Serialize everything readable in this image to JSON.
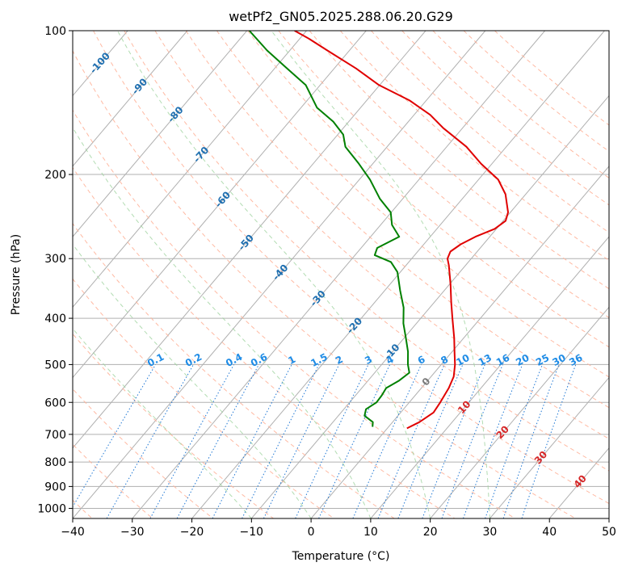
{
  "chart_data": {
    "type": "skew-t",
    "title": "wetPf2_GN05.2025.288.06.20.G29",
    "xlabel": "Temperature (°C)",
    "ylabel": "Pressure (hPa)",
    "xlim": [
      -40,
      50
    ],
    "ylim_hpa": [
      1050,
      100
    ],
    "skew_degC_per_log10p": 67.8,
    "x_ticks": [
      -40,
      -30,
      -20,
      -10,
      0,
      10,
      20,
      30,
      40,
      50
    ],
    "x_tick_labels": [
      "−40",
      "−30",
      "−20",
      "−10",
      "0",
      "10",
      "20",
      "30",
      "40",
      "50"
    ],
    "p_ticks": [
      1000,
      900,
      800,
      700,
      600,
      500,
      400,
      300,
      200,
      100
    ],
    "isotherms": [
      -140,
      -130,
      -120,
      -110,
      -100,
      -90,
      -80,
      -70,
      -60,
      -50,
      -40,
      -30,
      -20,
      -10,
      0,
      10,
      20,
      30,
      40,
      50
    ],
    "dry_adiabats_C": [
      -70,
      -60,
      -50,
      -40,
      -30,
      -20,
      -10,
      0,
      10,
      20,
      30,
      40,
      50,
      60,
      70,
      80,
      90,
      100,
      110,
      120,
      130,
      140,
      150,
      160,
      170,
      180
    ],
    "moist_adiabats_C": [
      -10,
      0,
      10,
      20,
      30
    ],
    "mixing_ratio_lines": {
      "values": [
        0.1,
        0.2,
        0.4,
        0.6,
        1,
        1.5,
        2,
        3,
        4,
        6,
        8,
        10,
        13,
        16,
        20,
        25,
        30,
        36
      ],
      "labels": [
        "0.1",
        "0.2",
        "0.4",
        "0.6",
        "1",
        "1.5",
        "2",
        "3",
        "4",
        "6",
        "8",
        "10",
        "13",
        "16",
        "20",
        "25",
        "30",
        "36"
      ]
    },
    "isotherm_labels": [
      {
        "t": -100,
        "p": 117,
        "text": "-100"
      },
      {
        "t": -90,
        "p": 131,
        "text": "-90"
      },
      {
        "t": -80,
        "p": 150,
        "text": "-80"
      },
      {
        "t": -70,
        "p": 182,
        "text": "-70"
      },
      {
        "t": -60,
        "p": 226,
        "text": "-60"
      },
      {
        "t": -50,
        "p": 278,
        "text": "-50"
      },
      {
        "t": -40,
        "p": 321,
        "text": "-40"
      },
      {
        "t": -30,
        "p": 364,
        "text": "-30"
      },
      {
        "t": -20,
        "p": 415,
        "text": "-20"
      },
      {
        "t": -10,
        "p": 471,
        "text": "-10"
      }
    ],
    "zero_label": {
      "t": 0,
      "p": 544,
      "text": "0"
    },
    "warm_isotherm_labels": [
      {
        "t": 10,
        "p": 615,
        "text": "10"
      },
      {
        "t": 20,
        "p": 694,
        "text": "20"
      },
      {
        "t": 30,
        "p": 784,
        "text": "30"
      },
      {
        "t": 40,
        "p": 880,
        "text": "40"
      }
    ],
    "series": [
      {
        "name": "Temperature",
        "color": "#e00000",
        "points": [
          {
            "p": 680,
            "t": 3.3
          },
          {
            "p": 660,
            "t": 4.5
          },
          {
            "p": 630,
            "t": 5.5
          },
          {
            "p": 600,
            "t": 5.2
          },
          {
            "p": 560,
            "t": 4.6
          },
          {
            "p": 530,
            "t": 3.8
          },
          {
            "p": 500,
            "t": 2.3
          },
          {
            "p": 470,
            "t": 0.4
          },
          {
            "p": 440,
            "t": -1.6
          },
          {
            "p": 400,
            "t": -4.7
          },
          {
            "p": 370,
            "t": -7.2
          },
          {
            "p": 340,
            "t": -9.8
          },
          {
            "p": 310,
            "t": -12.8
          },
          {
            "p": 300,
            "t": -14.0
          },
          {
            "p": 290,
            "t": -14.5
          },
          {
            "p": 280,
            "t": -13.8
          },
          {
            "p": 270,
            "t": -12.4
          },
          {
            "p": 260,
            "t": -10.3
          },
          {
            "p": 250,
            "t": -9.6
          },
          {
            "p": 240,
            "t": -10.4
          },
          {
            "p": 220,
            "t": -13.4
          },
          {
            "p": 205,
            "t": -16.7
          },
          {
            "p": 190,
            "t": -21.8
          },
          {
            "p": 175,
            "t": -26.7
          },
          {
            "p": 160,
            "t": -33.2
          },
          {
            "p": 150,
            "t": -37.3
          },
          {
            "p": 140,
            "t": -42.8
          },
          {
            "p": 130,
            "t": -50.1
          },
          {
            "p": 120,
            "t": -56.3
          },
          {
            "p": 110,
            "t": -63.7
          },
          {
            "p": 104,
            "t": -68.4
          },
          {
            "p": 100,
            "t": -72.0
          }
        ]
      },
      {
        "name": "Dewpoint",
        "color": "#008000",
        "points": [
          {
            "p": 675,
            "t": -2.7
          },
          {
            "p": 660,
            "t": -3.3
          },
          {
            "p": 640,
            "t": -5.6
          },
          {
            "p": 620,
            "t": -6.3
          },
          {
            "p": 600,
            "t": -5.5
          },
          {
            "p": 580,
            "t": -5.6
          },
          {
            "p": 560,
            "t": -5.9
          },
          {
            "p": 540,
            "t": -4.8
          },
          {
            "p": 520,
            "t": -4.2
          },
          {
            "p": 500,
            "t": -5.6
          },
          {
            "p": 470,
            "t": -7.4
          },
          {
            "p": 440,
            "t": -9.7
          },
          {
            "p": 410,
            "t": -12.2
          },
          {
            "p": 380,
            "t": -14.4
          },
          {
            "p": 350,
            "t": -17.4
          },
          {
            "p": 320,
            "t": -20.5
          },
          {
            "p": 305,
            "t": -23.0
          },
          {
            "p": 295,
            "t": -26.7
          },
          {
            "p": 285,
            "t": -27.3
          },
          {
            "p": 270,
            "t": -25.2
          },
          {
            "p": 255,
            "t": -28.1
          },
          {
            "p": 240,
            "t": -30.1
          },
          {
            "p": 225,
            "t": -33.8
          },
          {
            "p": 205,
            "t": -38.2
          },
          {
            "p": 190,
            "t": -42.3
          },
          {
            "p": 175,
            "t": -47.0
          },
          {
            "p": 165,
            "t": -49.1
          },
          {
            "p": 155,
            "t": -52.6
          },
          {
            "p": 145,
            "t": -57.3
          },
          {
            "p": 130,
            "t": -62.4
          },
          {
            "p": 120,
            "t": -67.9
          },
          {
            "p": 110,
            "t": -73.8
          },
          {
            "p": 100,
            "t": -79.6
          }
        ]
      }
    ]
  }
}
